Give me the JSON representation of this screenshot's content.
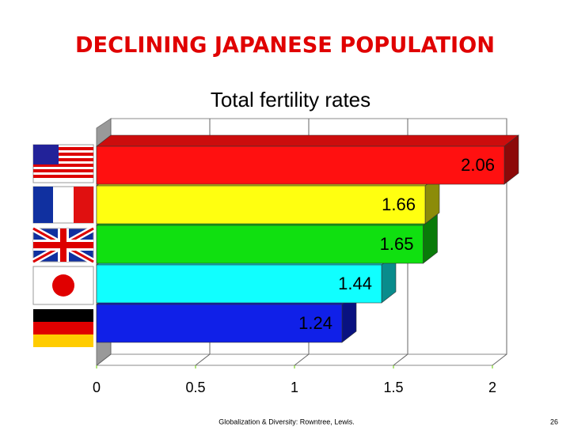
{
  "title": "DECLINING JAPANESE POPULATION",
  "chart_data": {
    "type": "bar",
    "orientation": "horizontal",
    "title": "Total fertility rates",
    "categories": [
      null,
      null,
      null,
      null,
      null
    ],
    "values": [
      2.06,
      1.66,
      1.65,
      1.44,
      1.24
    ],
    "colors": [
      "#ff1010",
      "#ffff10",
      "#10e010",
      "#10ffff",
      "#1020e8"
    ],
    "xlim": [
      0,
      2
    ],
    "xticks": [
      0,
      0.5,
      1,
      1.5,
      2
    ],
    "grid": true
  },
  "footer": "Globalization & Diversity: Rowntree, Lewis.",
  "page_number": "26"
}
